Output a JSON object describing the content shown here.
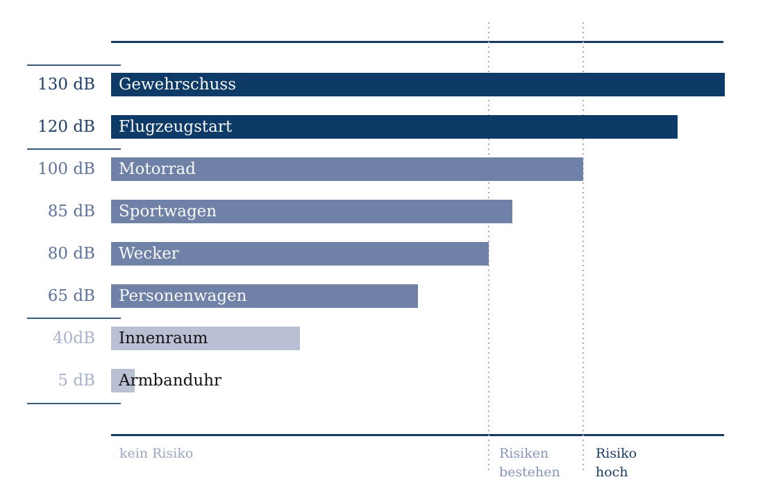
{
  "chart_data": {
    "type": "bar",
    "orientation": "horizontal",
    "unit": "dB",
    "xlim": [
      0,
      130
    ],
    "grid": "off",
    "rows": [
      {
        "db_label": "130 dB",
        "value": 130,
        "item": "Gewehrschuss",
        "shade": "dark"
      },
      {
        "db_label": "120 dB",
        "value": 120,
        "item": "Flugzeugstart",
        "shade": "dark"
      },
      {
        "db_label": "100 dB",
        "value": 100,
        "item": "Motorrad",
        "shade": "medium"
      },
      {
        "db_label": "85 dB",
        "value": 85,
        "item": "Sportwagen",
        "shade": "medium"
      },
      {
        "db_label": "80 dB",
        "value": 80,
        "item": "Wecker",
        "shade": "medium"
      },
      {
        "db_label": "65 dB",
        "value": 65,
        "item": "Personenwagen",
        "shade": "medium"
      },
      {
        "db_label": "40dB",
        "value": 40,
        "item": "Innenraum",
        "shade": "light"
      },
      {
        "db_label": "5 dB",
        "value": 5,
        "item": "Armbanduhr",
        "shade": "light"
      }
    ],
    "thresholds": [
      {
        "value": 80
      },
      {
        "value": 100
      }
    ],
    "zones": [
      {
        "label": "kein Risiko"
      },
      {
        "label": "Risiken bestehen"
      },
      {
        "label": "Risiko hoch"
      }
    ],
    "colors": {
      "bar_dark": "#0d3a66",
      "bar_medium": "#6f81a6",
      "bar_light": "#b9c0d4",
      "label_dark": "#1e3f6b",
      "label_medium": "#5e729c",
      "label_light": "#a9b2cc",
      "rule": "#16395f",
      "threshold_dotted": "#adadad",
      "zone_no_risk": "#9aa6c2",
      "zone_risk_exists": "#8694b8",
      "zone_risk_high": "#16395f",
      "bar_text_on_dark": "#f7f8fa",
      "bar_text_on_light": "#141414"
    }
  }
}
